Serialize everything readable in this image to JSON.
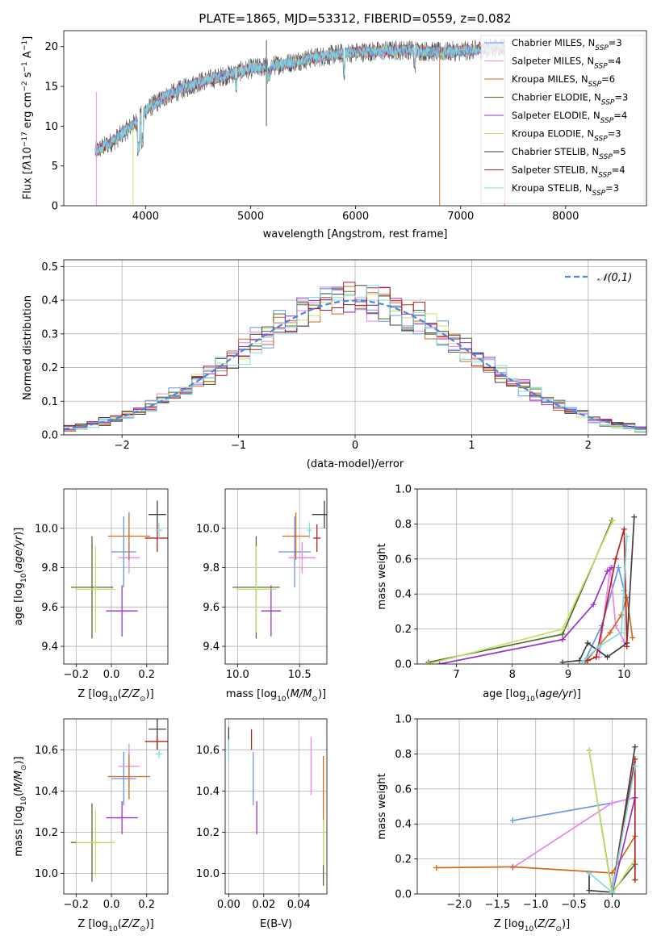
{
  "figure_title": "PLATE=1865, MJD=53312, FIBERID=0559, z=0.082",
  "colors": {
    "Chabrier MILES": "#6495ed",
    "Salpeter MILES": "#ee82ee",
    "Kroupa MILES": "#d2691e",
    "Chabrier ELODIE": "#556b2f",
    "Salpeter ELODIE": "#9932cc",
    "Kroupa ELODIE": "#c6e16a",
    "Chabrier STELIB": "#404040",
    "Salpeter STELIB": "#b22222",
    "Kroupa STELIB": "#7fdde0"
  },
  "chart_data": [
    {
      "id": "spectrum",
      "type": "line",
      "title": "PLATE=1865, MJD=53312, FIBERID=0559, z=0.082",
      "xlabel": "wavelength [Angstrom, rest frame]",
      "ylabel": "Flux [fλ10⁻¹⁷ erg cm⁻² s⁻¹ A⁻¹]",
      "xlim": [
        3220,
        8770
      ],
      "ylim": [
        0,
        22
      ],
      "xticks": [
        4000,
        5000,
        6000,
        7000,
        8000
      ],
      "yticks": [
        0,
        5,
        10,
        15,
        20
      ],
      "legend_position": "right",
      "legend": [
        "Chabrier MILES, N_SSP=3",
        "Salpeter MILES, N_SSP=4",
        "Kroupa MILES, N_SSP=6",
        "Chabrier ELODIE, N_SSP=3",
        "Salpeter ELODIE, N_SSP=4",
        "Kroupa ELODIE, N_SSP=3",
        "Chabrier STELIB, N_SSP=5",
        "Salpeter STELIB, N_SSP=4",
        "Kroupa STELIB, N_SSP=3"
      ],
      "continuum": {
        "x": [
          3520,
          3700,
          3900,
          4000,
          4200,
          4500,
          4800,
          5000,
          5300,
          5600,
          5900,
          6200,
          6500,
          6800,
          7100,
          7400
        ],
        "y": [
          6.8,
          8.2,
          10.4,
          12.0,
          13.8,
          15.5,
          16.5,
          17.2,
          17.8,
          18.6,
          19.2,
          19.4,
          19.6,
          19.3,
          19.5,
          20.0
        ]
      },
      "spikes": [
        {
          "x": 3530,
          "y": [
            0,
            14.3
          ]
        },
        {
          "x": 3880,
          "y": [
            0,
            10
          ]
        },
        {
          "x": 5150,
          "y": [
            10,
            20.8
          ]
        },
        {
          "x": 6800,
          "y": [
            0,
            19.5
          ]
        },
        {
          "x": 7420,
          "y": [
            0,
            19.6
          ]
        }
      ]
    },
    {
      "id": "residuals",
      "type": "line",
      "xlabel": "(data-model)/error",
      "ylabel": "Normed distribution",
      "xlim": [
        -2.5,
        2.5
      ],
      "ylim": [
        0,
        0.52
      ],
      "xticks": [
        -2,
        -1,
        0,
        1,
        2
      ],
      "yticks": [
        0.0,
        0.1,
        0.2,
        0.3,
        0.4,
        0.5
      ],
      "grid": true,
      "legend": [
        "𝒩(0,1)"
      ],
      "legend_position": "top-right",
      "reference_curve": "normal(0,1)",
      "bin_width": 0.1
    },
    {
      "id": "age-vs-Z",
      "type": "scatter",
      "xlabel": "Z [log10(Z/Z⊙)]",
      "ylabel": "age [log10(age/yr)]",
      "xlim": [
        -0.27,
        0.32
      ],
      "ylim": [
        9.31,
        10.2
      ],
      "xticks": [
        -0.2,
        0.0,
        0.2
      ],
      "yticks": [
        9.4,
        9.6,
        9.8,
        10.0
      ],
      "grid": true,
      "points": [
        {
          "model": "Chabrier MILES",
          "x": 0.07,
          "y": 9.88,
          "xerr": 0.07,
          "yerr": 0.18
        },
        {
          "model": "Salpeter MILES",
          "x": 0.1,
          "y": 9.85,
          "xerr": 0.06,
          "yerr": 0.08
        },
        {
          "model": "Kroupa MILES",
          "x": 0.1,
          "y": 9.96,
          "xerr": 0.12,
          "yerr": 0.12
        },
        {
          "model": "Chabrier ELODIE",
          "x": -0.11,
          "y": 9.7,
          "xerr": 0.12,
          "yerr": 0.26
        },
        {
          "model": "Salpeter ELODIE",
          "x": 0.06,
          "y": 9.58,
          "xerr": 0.09,
          "yerr": 0.13
        },
        {
          "model": "Kroupa ELODIE",
          "x": -0.09,
          "y": 9.69,
          "xerr": 0.11,
          "yerr": 0.22
        },
        {
          "model": "Chabrier STELIB",
          "x": 0.26,
          "y": 10.07,
          "xerr": 0.05,
          "yerr": 0.07
        },
        {
          "model": "Salpeter STELIB",
          "x": 0.26,
          "y": 9.95,
          "xerr": 0.07,
          "yerr": 0.07
        },
        {
          "model": "Kroupa STELIB",
          "x": 0.27,
          "y": 9.99,
          "xerr": 0.02,
          "yerr": 0.04
        }
      ]
    },
    {
      "id": "age-vs-mass",
      "type": "scatter",
      "xlabel": "mass [log10(M/M⊙)]",
      "ylabel": "",
      "xlim": [
        9.9,
        10.72
      ],
      "ylim": [
        9.31,
        10.2
      ],
      "xticks": [
        10.0,
        10.5
      ],
      "yticks": [
        9.4,
        9.6,
        9.8,
        10.0
      ],
      "grid": true,
      "points": [
        {
          "model": "Chabrier MILES",
          "x": 10.46,
          "y": 9.88,
          "xerr": 0.13,
          "yerr": 0.18
        },
        {
          "model": "Salpeter MILES",
          "x": 10.52,
          "y": 9.85,
          "xerr": 0.11,
          "yerr": 0.08
        },
        {
          "model": "Kroupa MILES",
          "x": 10.47,
          "y": 9.96,
          "xerr": 0.11,
          "yerr": 0.12
        },
        {
          "model": "Chabrier ELODIE",
          "x": 10.15,
          "y": 9.7,
          "xerr": 0.19,
          "yerr": 0.26
        },
        {
          "model": "Salpeter ELODIE",
          "x": 10.27,
          "y": 9.58,
          "xerr": 0.08,
          "yerr": 0.13
        },
        {
          "model": "Kroupa ELODIE",
          "x": 10.15,
          "y": 9.69,
          "xerr": 0.16,
          "yerr": 0.22
        },
        {
          "model": "Chabrier STELIB",
          "x": 10.7,
          "y": 10.07,
          "xerr": 0.1,
          "yerr": 0.07
        },
        {
          "model": "Salpeter STELIB",
          "x": 10.64,
          "y": 9.95,
          "xerr": 0.03,
          "yerr": 0.07
        },
        {
          "model": "Kroupa STELIB",
          "x": 10.58,
          "y": 9.99,
          "xerr": 0.02,
          "yerr": 0.04
        }
      ]
    },
    {
      "id": "weight-vs-age",
      "type": "line",
      "xlabel": "age [log10(age/yr)]",
      "ylabel": "mass weight",
      "xlim": [
        6.3,
        10.4
      ],
      "ylim": [
        0,
        1.0
      ],
      "xticks": [
        7,
        8,
        9,
        10
      ],
      "yticks": [
        0.0,
        0.2,
        0.4,
        0.6,
        0.8,
        1.0
      ],
      "grid": true,
      "series": [
        {
          "model": "Chabrier MILES",
          "x": [
            9.3,
            9.6,
            9.9,
            10.0
          ],
          "y": [
            0.02,
            0.22,
            0.55,
            0.42
          ]
        },
        {
          "model": "Salpeter MILES",
          "x": [
            9.55,
            9.75,
            9.85,
            10.0
          ],
          "y": [
            0.04,
            0.55,
            0.22,
            0.13
          ]
        },
        {
          "model": "Kroupa MILES",
          "x": [
            9.3,
            9.75,
            9.95,
            10.05,
            10.15
          ],
          "y": [
            0.01,
            0.18,
            0.28,
            0.38,
            0.15
          ]
        },
        {
          "model": "Chabrier ELODIE",
          "x": [
            6.5,
            8.9,
            9.78
          ],
          "y": [
            0.01,
            0.17,
            0.82
          ]
        },
        {
          "model": "Salpeter ELODIE",
          "x": [
            6.7,
            8.9,
            9.45,
            9.7,
            9.78
          ],
          "y": [
            0.0,
            0.14,
            0.34,
            0.53,
            0.55
          ]
        },
        {
          "model": "Kroupa ELODIE",
          "x": [
            6.5,
            8.9,
            9.8
          ],
          "y": [
            0.0,
            0.2,
            0.82
          ]
        },
        {
          "model": "Chabrier STELIB",
          "x": [
            8.9,
            9.2,
            9.35,
            9.7,
            10.05,
            10.18
          ],
          "y": [
            0.01,
            0.02,
            0.12,
            0.04,
            0.12,
            0.84
          ]
        },
        {
          "model": "Salpeter STELIB",
          "x": [
            9.35,
            9.5,
            9.85,
            10.0,
            10.05
          ],
          "y": [
            0.02,
            0.04,
            0.6,
            0.77,
            0.1
          ]
        },
        {
          "model": "Kroupa STELIB",
          "x": [
            9.25,
            9.55,
            9.95,
            10.05
          ],
          "y": [
            0.01,
            0.1,
            0.18,
            0.73
          ]
        }
      ]
    },
    {
      "id": "mass-vs-Z",
      "type": "scatter",
      "xlabel": "Z [log10(Z/Z⊙)]",
      "ylabel": "mass [log10(M/M⊙)]",
      "xlim": [
        -0.27,
        0.32
      ],
      "ylim": [
        9.9,
        10.75
      ],
      "xticks": [
        -0.2,
        0.0,
        0.2
      ],
      "yticks": [
        10.0,
        10.2,
        10.4,
        10.6
      ],
      "grid": true,
      "points": [
        {
          "model": "Chabrier MILES",
          "x": 0.07,
          "y": 10.46,
          "xerr": 0.07,
          "yerr": 0.13
        },
        {
          "model": "Salpeter MILES",
          "x": 0.1,
          "y": 10.52,
          "xerr": 0.06,
          "yerr": 0.11
        },
        {
          "model": "Kroupa MILES",
          "x": 0.1,
          "y": 10.47,
          "xerr": 0.12,
          "yerr": 0.11
        },
        {
          "model": "Chabrier ELODIE",
          "x": -0.11,
          "y": 10.15,
          "xerr": 0.12,
          "yerr": 0.19
        },
        {
          "model": "Salpeter ELODIE",
          "x": 0.06,
          "y": 10.27,
          "xerr": 0.09,
          "yerr": 0.08
        },
        {
          "model": "Kroupa ELODIE",
          "x": -0.09,
          "y": 10.15,
          "xerr": 0.11,
          "yerr": 0.16
        },
        {
          "model": "Chabrier STELIB",
          "x": 0.26,
          "y": 10.7,
          "xerr": 0.05,
          "yerr": 0.1
        },
        {
          "model": "Salpeter STELIB",
          "x": 0.26,
          "y": 10.64,
          "xerr": 0.07,
          "yerr": 0.03
        },
        {
          "model": "Kroupa STELIB",
          "x": 0.27,
          "y": 10.58,
          "xerr": 0.02,
          "yerr": 0.02
        }
      ]
    },
    {
      "id": "mass-vs-ebv",
      "type": "scatter",
      "xlabel": "E(B-V)",
      "ylabel": "",
      "xlim": [
        -0.002,
        0.056
      ],
      "ylim": [
        9.9,
        10.75
      ],
      "xticks": [
        0.0,
        0.02,
        0.04
      ],
      "yticks": [
        10.0,
        10.2,
        10.4,
        10.6
      ],
      "grid": true,
      "points": [
        {
          "model": "Chabrier MILES",
          "x": 0.014,
          "y": 10.46,
          "xerr": 0,
          "yerr": 0.13
        },
        {
          "model": "Salpeter MILES",
          "x": 0.047,
          "y": 10.52,
          "xerr": 0,
          "yerr": 0.14
        },
        {
          "model": "Kroupa MILES",
          "x": 0.054,
          "y": 10.4,
          "xerr": 0,
          "yerr": 0.17
        },
        {
          "model": "Chabrier ELODIE",
          "x": 0.054,
          "y": 10.1,
          "xerr": 0,
          "yerr": 0.16
        },
        {
          "model": "Salpeter ELODIE",
          "x": 0.016,
          "y": 10.27,
          "xerr": 0,
          "yerr": 0.08
        },
        {
          "model": "Kroupa ELODIE",
          "x": 0.054,
          "y": 10.15,
          "xerr": 0,
          "yerr": 0.11
        },
        {
          "model": "Chabrier STELIB",
          "x": 0.0,
          "y": 10.66,
          "xerr": 0,
          "yerr": 0.05
        },
        {
          "model": "Salpeter STELIB",
          "x": 0.013,
          "y": 10.65,
          "xerr": 0,
          "yerr": 0.05
        },
        {
          "model": "Kroupa STELIB",
          "x": 0.0,
          "y": 10.6,
          "xerr": 0,
          "yerr": 0.05
        }
      ]
    },
    {
      "id": "weight-vs-Z",
      "type": "line",
      "xlabel": "Z [log10(Z/Z⊙)]",
      "ylabel": "mass weight",
      "xlim": [
        -2.55,
        0.45
      ],
      "ylim": [
        0,
        1.0
      ],
      "xticks": [
        -2.0,
        -1.5,
        -1.0,
        -0.5,
        0.0
      ],
      "yticks": [
        0.0,
        0.2,
        0.4,
        0.6,
        0.8,
        1.0
      ],
      "grid": true,
      "series": [
        {
          "model": "Chabrier MILES",
          "x": [
            -1.3,
            0.0,
            0.3
          ],
          "y": [
            0.42,
            0.52,
            0.55
          ]
        },
        {
          "model": "Salpeter MILES",
          "x": [
            -1.3,
            0.0,
            0.3
          ],
          "y": [
            0.15,
            0.52,
            0.55
          ]
        },
        {
          "model": "Kroupa MILES",
          "x": [
            -2.3,
            -1.3,
            0.0,
            0.3
          ],
          "y": [
            0.15,
            0.155,
            0.12,
            0.33
          ]
        },
        {
          "model": "Chabrier ELODIE",
          "x": [
            -0.3,
            0.0,
            0.3
          ],
          "y": [
            0.82,
            0.01,
            0.17
          ]
        },
        {
          "model": "Salpeter ELODIE",
          "x": [
            0.0,
            0.3
          ],
          "y": [
            0.0,
            0.55
          ]
        },
        {
          "model": "Kroupa ELODIE",
          "x": [
            -0.3,
            0.0,
            0.3
          ],
          "y": [
            0.82,
            0.0,
            0.2
          ]
        },
        {
          "model": "Chabrier STELIB",
          "x": [
            -0.3,
            -0.3,
            0.0,
            0.3
          ],
          "y": [
            0.12,
            0.02,
            0.01,
            0.84
          ]
        },
        {
          "model": "Salpeter STELIB",
          "x": [
            0.0,
            0.3,
            0.3
          ],
          "y": [
            0.01,
            0.77,
            0.08
          ]
        },
        {
          "model": "Kroupa STELIB",
          "x": [
            -0.3,
            0.0,
            0.3
          ],
          "y": [
            0.12,
            0.01,
            0.73
          ]
        }
      ]
    }
  ]
}
